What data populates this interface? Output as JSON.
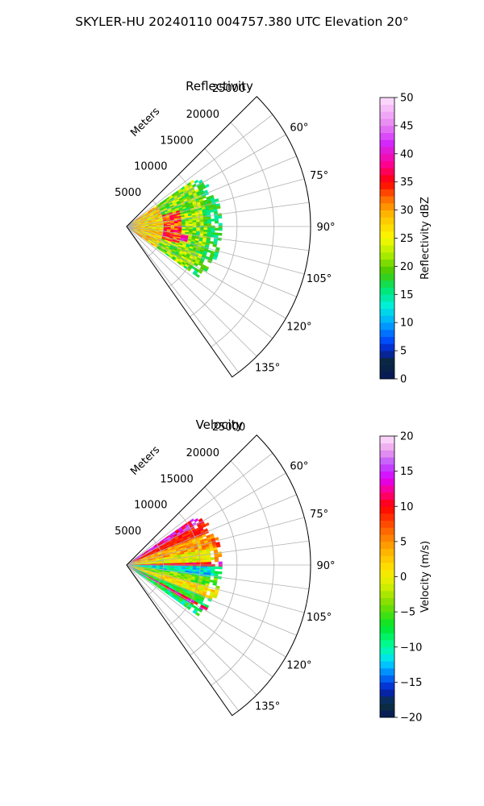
{
  "figure_title": "SKYLER-HU  20240110  004757.380 UTC Elevation 20°",
  "range_unit_label": "Meters",
  "chart_data": [
    {
      "type": "heatmap",
      "title": "Reflectivity",
      "projection": "polar-sector",
      "range_ticks": [
        5000,
        10000,
        15000,
        20000,
        25000
      ],
      "range_tick_labels": [
        "5000",
        "10000",
        "15000",
        "20000",
        "25000"
      ],
      "range_max": 25000,
      "azimuth_range_deg": [
        45,
        145
      ],
      "azimuth_ticks": [
        60,
        75,
        90,
        105,
        120,
        135
      ],
      "azimuth_tick_labels": [
        "60°",
        "75°",
        "90°",
        "105°",
        "120°",
        "135°"
      ],
      "data_extent_m": 13000,
      "grid": true,
      "colorbar": {
        "label": "Reflectivity dBZ",
        "range": [
          0,
          50
        ],
        "ticks": [
          0,
          5,
          10,
          15,
          20,
          25,
          30,
          35,
          40,
          45,
          50
        ],
        "tick_labels": [
          "0",
          "5",
          "10",
          "15",
          "20",
          "25",
          "30",
          "35",
          "40",
          "45",
          "50"
        ]
      }
    },
    {
      "type": "heatmap",
      "title": "Velocity",
      "projection": "polar-sector",
      "range_ticks": [
        5000,
        10000,
        15000,
        20000,
        25000
      ],
      "range_tick_labels": [
        "5000",
        "10000",
        "15000",
        "20000",
        "25000"
      ],
      "range_max": 25000,
      "azimuth_range_deg": [
        45,
        145
      ],
      "azimuth_ticks": [
        60,
        75,
        90,
        105,
        120,
        135
      ],
      "azimuth_tick_labels": [
        "60°",
        "75°",
        "90°",
        "105°",
        "120°",
        "135°"
      ],
      "data_extent_m": 13000,
      "grid": true,
      "colorbar": {
        "label": "Velocity (m/s)",
        "range": [
          -20,
          20
        ],
        "ticks": [
          -20,
          -15,
          -10,
          -5,
          0,
          5,
          10,
          15,
          20
        ],
        "tick_labels": [
          "−20",
          "−15",
          "−10",
          "−5",
          "0",
          "5",
          "10",
          "15",
          "20"
        ]
      }
    }
  ]
}
